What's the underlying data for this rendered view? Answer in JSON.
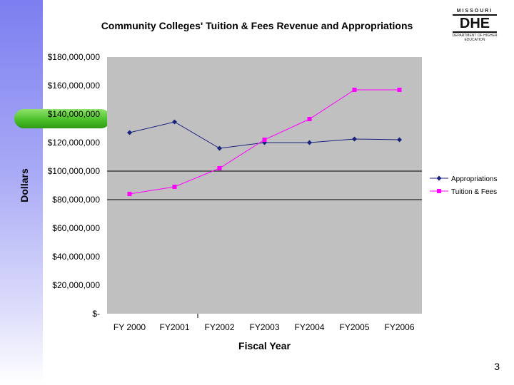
{
  "page": {
    "number": "3"
  },
  "logo": {
    "top_text": "MISSOURI",
    "main_text": "DHE",
    "sub_text": "DEPARTMENT OF HIGHER EDUCATION"
  },
  "colors": {
    "plot_bg": "#c0c0c0",
    "appropriations": "#1a237e",
    "tuition": "#ff00ff"
  },
  "chart_data": {
    "type": "line",
    "title": "Community Colleges' Tuition & Fees Revenue and Appropriations",
    "xlabel": "Fiscal Year",
    "ylabel": "Dollars",
    "categories": [
      "FY 2000",
      "FY2001",
      "FY2002",
      "FY2003",
      "FY2004",
      "FY2005",
      "FY2006"
    ],
    "ylim": [
      0,
      180000000
    ],
    "yticks": [
      0,
      20000000,
      40000000,
      60000000,
      80000000,
      100000000,
      120000000,
      140000000,
      160000000,
      180000000
    ],
    "ytick_labels": [
      "$-",
      "$20,000,000",
      "$40,000,000",
      "$60,000,000",
      "$80,000,000",
      "$100,000,000",
      "$120,000,000",
      "$140,000,000",
      "$160,000,000",
      "$180,000,000"
    ],
    "gridlines": [
      80000000,
      100000000
    ],
    "legend_position": "right",
    "series": [
      {
        "name": "Appropriations",
        "values": [
          127000000,
          134500000,
          116000000,
          120000000,
          120000000,
          122500000,
          122000000
        ]
      },
      {
        "name": "Tuition & Fees",
        "values": [
          84000000,
          89000000,
          102000000,
          122000000,
          136500000,
          157000000,
          157000000
        ]
      }
    ]
  }
}
